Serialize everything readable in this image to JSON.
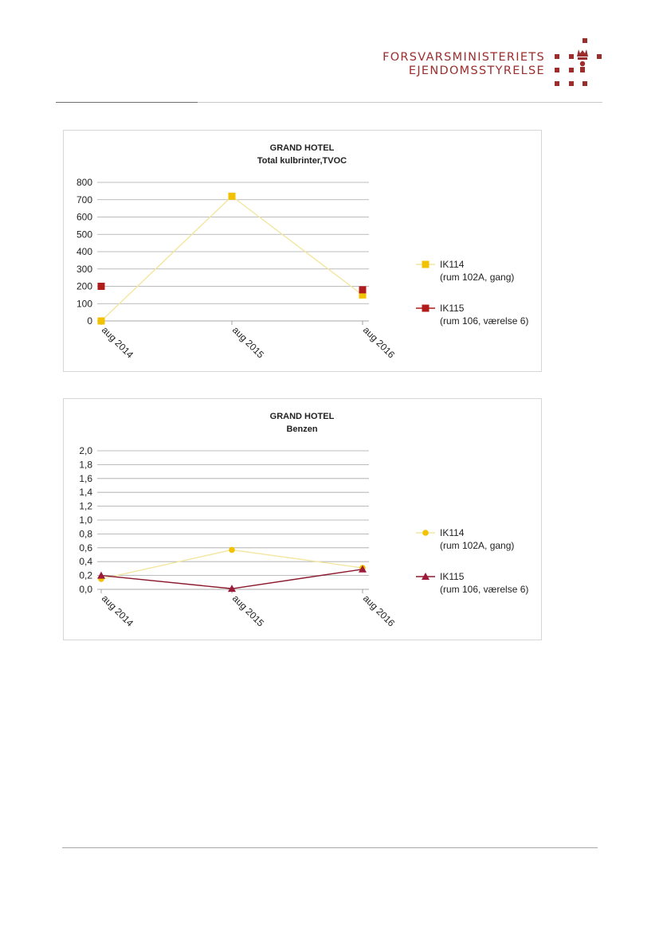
{
  "header": {
    "logo_line1": "FORSVARSMINISTERIETS",
    "logo_line2": "EJENDOMSSTYRELSE",
    "brand_color": "#9b2d2d",
    "logo_icon": "crown-grid-icon"
  },
  "chart_data": [
    {
      "type": "line",
      "title": "GRAND HOTEL",
      "subtitle": "Total kulbrinter,TVOC",
      "categories": [
        "aug 2014",
        "aug 2015",
        "aug 2016"
      ],
      "ylim": [
        0,
        800
      ],
      "yticks": [
        0,
        100,
        200,
        300,
        400,
        500,
        600,
        700,
        800
      ],
      "ytick_labels": [
        "0",
        "100",
        "200",
        "300",
        "400",
        "500",
        "600",
        "700",
        "800"
      ],
      "grid": true,
      "legend_position": "right",
      "series": [
        {
          "name": "IK114",
          "name_detail": "(rum 102A, gang)",
          "values": [
            0,
            720,
            150
          ],
          "color": "#f2c200",
          "line_color": "#f3e6a0",
          "marker": "square"
        },
        {
          "name": "IK115",
          "name_detail": "(rum 106, værelse 6)",
          "values": [
            200,
            null,
            180
          ],
          "color": "#b01c1c",
          "line_color": "#b01c1c",
          "marker": "square"
        }
      ]
    },
    {
      "type": "line",
      "title": "GRAND HOTEL",
      "subtitle": "Benzen",
      "categories": [
        "aug 2014",
        "aug 2015",
        "aug 2016"
      ],
      "ylim": [
        0,
        2.0
      ],
      "yticks": [
        0,
        0.2,
        0.4,
        0.6,
        0.8,
        1.0,
        1.2,
        1.4,
        1.6,
        1.8,
        2.0
      ],
      "ytick_labels": [
        "0,0",
        "0,2",
        "0,4",
        "0,6",
        "0,8",
        "1,0",
        "1,2",
        "1,4",
        "1,6",
        "1,8",
        "2,0"
      ],
      "grid": true,
      "legend_position": "right",
      "series": [
        {
          "name": "IK114",
          "name_detail": "(rum 102A, gang)",
          "values": [
            0.15,
            0.57,
            0.31
          ],
          "color": "#f2c200",
          "line_color": "#f3e6a0",
          "marker": "circle"
        },
        {
          "name": "IK115",
          "name_detail": "(rum 106, værelse 6)",
          "values": [
            0.2,
            0.01,
            0.29
          ],
          "color": "#9e1a3a",
          "line_color": "#8c1a2e",
          "marker": "triangle"
        }
      ]
    }
  ]
}
